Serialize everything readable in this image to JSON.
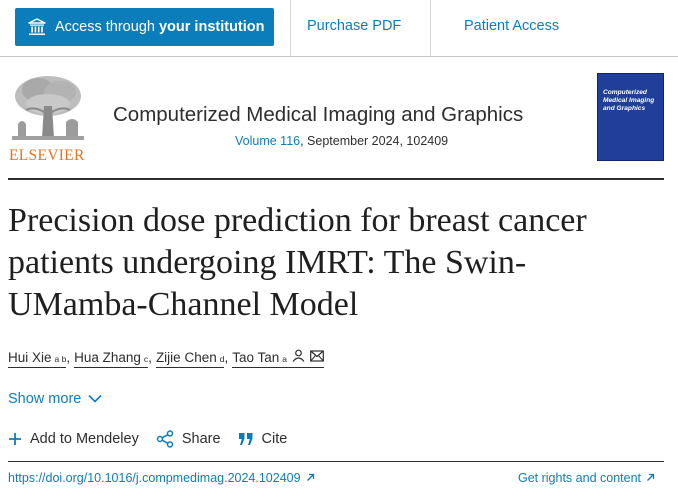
{
  "access_bar": {
    "institution_prefix": "Access through ",
    "institution_bold": "your institution",
    "purchase_pdf": "Purchase PDF",
    "patient_access": "Patient Access"
  },
  "publisher": {
    "name": "ELSEVIER"
  },
  "journal": {
    "title": "Computerized Medical Imaging and Graphics",
    "volume": "Volume 116",
    "issue_info": ", September 2024, 102409",
    "cover_title": "Computerized Medical Imaging and Graphics"
  },
  "article": {
    "title": "Precision dose prediction for breast cancer patients undergoing IMRT: The Swin-UMamba-Channel Model"
  },
  "authors": [
    {
      "name": "Hui Xie",
      "affil": "a b"
    },
    {
      "name": "Hua Zhang",
      "affil": "c"
    },
    {
      "name": "Zijie Chen",
      "affil": "d"
    },
    {
      "name": "Tao Tan",
      "affil": "a"
    }
  ],
  "show_more": "Show more",
  "actions": {
    "mendeley": "Add to Mendeley",
    "share": "Share",
    "cite": "Cite"
  },
  "links": {
    "doi": "https://doi.org/10.1016/j.compmedimag.2024.102409",
    "rights": "Get rights and content"
  },
  "colors": {
    "brand_blue": "#0c7dbb",
    "elsevier_orange": "#e9711c",
    "cover_blue": "#1f3f9a"
  },
  "icons": [
    "institution-icon",
    "elsevier-tree-logo",
    "person-icon",
    "mail-icon",
    "chevron-down-icon",
    "plus-icon",
    "share-icon",
    "cite-quote-icon",
    "external-arrow-icon"
  ]
}
